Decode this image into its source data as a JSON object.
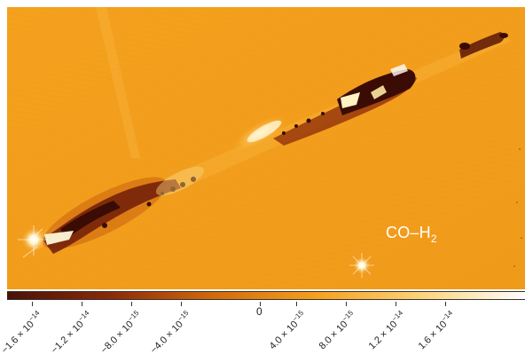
{
  "image": {
    "overlay_label": {
      "main": "CO–H",
      "subscript": "2"
    }
  },
  "colorbar": {
    "colors": [
      "#4a1208",
      "#8a2a08",
      "#d36a0c",
      "#f6a11e",
      "#fbd37a",
      "#ffffff"
    ],
    "ticks": [
      {
        "mantissa": "−1.6 × 10",
        "exponent": "−14"
      },
      {
        "mantissa": "−1.2 × 10",
        "exponent": "−14"
      },
      {
        "mantissa": "−8.0 × 10",
        "exponent": "−15"
      },
      {
        "mantissa": "−4.0 × 10",
        "exponent": "−15"
      },
      {
        "mantissa": "0",
        "exponent": ""
      },
      {
        "mantissa": "4.0 × 10",
        "exponent": "−15"
      },
      {
        "mantissa": "8.0 × 10",
        "exponent": "−15"
      },
      {
        "mantissa": "1.2 × 10",
        "exponent": "−14"
      },
      {
        "mantissa": "1.6 × 10",
        "exponent": "−14"
      }
    ]
  }
}
